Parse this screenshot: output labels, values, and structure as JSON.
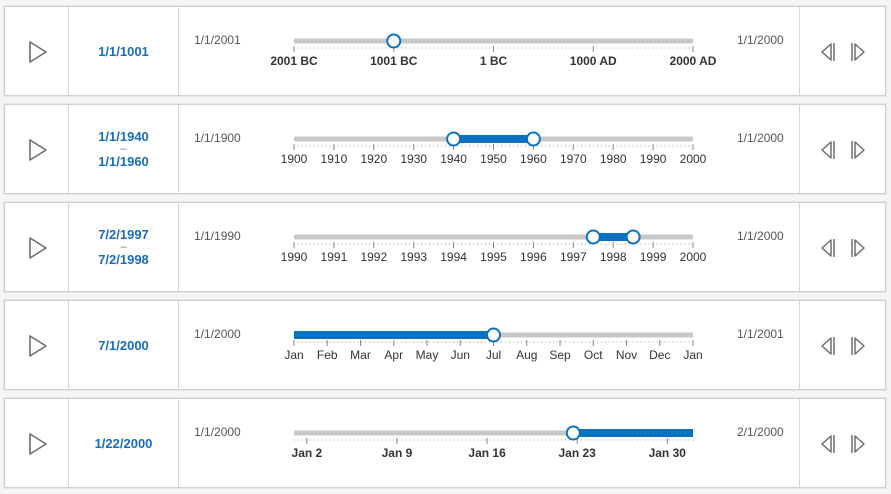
{
  "sliders": [
    {
      "date_lines": [
        "1/1/1001"
      ],
      "min_label": "1/1/2001",
      "max_label": "1/1/2000",
      "ticks": [
        "2001 BC",
        "1001 BC",
        "1 BC",
        "1000 AD",
        "2000 AD"
      ],
      "thumbs": [
        0.25
      ],
      "fill": null,
      "tick_weight": "bold"
    },
    {
      "date_lines": [
        "1/1/1940",
        "–",
        "1/1/1960"
      ],
      "min_label": "1/1/1900",
      "max_label": "1/1/2000",
      "ticks": [
        "1900",
        "1910",
        "1920",
        "1930",
        "1940",
        "1950",
        "1960",
        "1970",
        "1980",
        "1990",
        "2000"
      ],
      "thumbs": [
        0.4,
        0.6
      ],
      "fill": [
        0.4,
        0.6
      ],
      "tick_weight": "normal"
    },
    {
      "date_lines": [
        "7/2/1997",
        "–",
        "7/2/1998"
      ],
      "min_label": "1/1/1990",
      "max_label": "1/1/2000",
      "ticks": [
        "1990",
        "1991",
        "1992",
        "1993",
        "1994",
        "1995",
        "1996",
        "1997",
        "1998",
        "1999",
        "2000"
      ],
      "thumbs": [
        0.75,
        0.85
      ],
      "fill": [
        0.75,
        0.85
      ],
      "tick_weight": "normal"
    },
    {
      "date_lines": [
        "7/1/2000"
      ],
      "min_label": "1/1/2000",
      "max_label": "1/1/2001",
      "ticks": [
        "Jan",
        "Feb",
        "Mar",
        "Apr",
        "May",
        "Jun",
        "Jul",
        "Aug",
        "Sep",
        "Oct",
        "Nov",
        "Dec",
        "Jan"
      ],
      "thumbs": [
        0.5
      ],
      "fill": [
        0,
        0.5
      ],
      "tick_weight": "normal"
    },
    {
      "date_lines": [
        "1/22/2000"
      ],
      "min_label": "1/1/2000",
      "max_label": "2/1/2000",
      "ticks": [
        "Jan 2",
        "Jan 9",
        "Jan 16",
        "Jan 23",
        "Jan 30"
      ],
      "tick_positions": [
        0.0323,
        0.2581,
        0.4839,
        0.7097,
        0.9355
      ],
      "thumbs": [
        0.7
      ],
      "fill": [
        0.7,
        1
      ],
      "tick_weight": "bold"
    }
  ],
  "colors": {
    "accent": "#0b72c2",
    "track": "#c8c8c8",
    "icon": "#6e6e6e"
  },
  "icons": {
    "play": "play-icon",
    "previous": "step-back-icon",
    "next": "step-forward-icon"
  }
}
